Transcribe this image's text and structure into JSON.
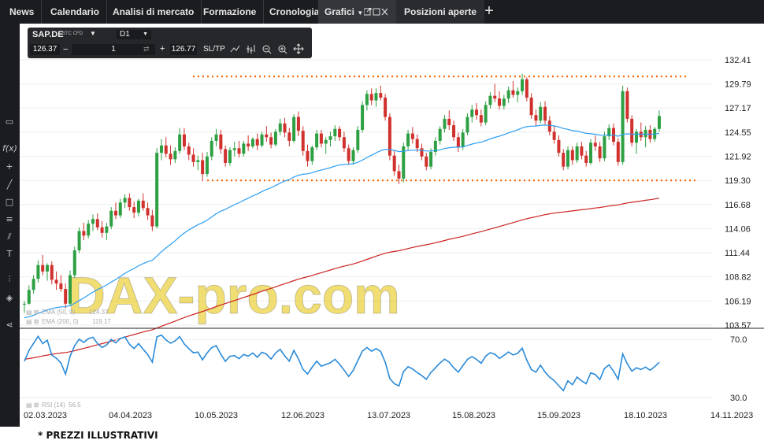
{
  "tabs": [
    {
      "label": "News"
    },
    {
      "label": "Calendario"
    },
    {
      "label": "Analisi di mercato"
    },
    {
      "label": "Formazione"
    },
    {
      "label": "Cronologia"
    },
    {
      "label": "Grafici"
    },
    {
      "label": "Posizioni aperte"
    }
  ],
  "toolbox": {
    "symbol": "SAP.DE",
    "instrument_type": "STC CFD",
    "timeframe": "D1",
    "bid": "126.37",
    "quantity": "1",
    "ask": "126.77",
    "sltp_label": "SL/TP"
  },
  "watermark": "DAX-pro.com",
  "footnote": "* PREZZI ILLUSTRATIVI",
  "colors": {
    "up": "#2ea043",
    "down": "#d0312d",
    "ema50": "#2a9df4",
    "ema200": "#cc2222",
    "rsi": "#2a8ad8",
    "levels": "#ff6600"
  },
  "chart_data": [
    {
      "type": "candlestick",
      "symbol": "SAP.DE",
      "y_ticks": [
        "132.41",
        "129.79",
        "127.17",
        "124.55",
        "121.92",
        "119.30",
        "116.68",
        "114.06",
        "111.44",
        "108.82",
        "106.19",
        "103.57"
      ],
      "ylim": [
        103.57,
        132.41
      ],
      "x_ticks": [
        "02.03.2023",
        "04.04.2023",
        "10.05.2023",
        "12.06.2023",
        "13.07.2023",
        "15.08.2023",
        "15.09.2023",
        "18.10.2023",
        "14.11.2023"
      ],
      "horizontal_levels": [
        130.6,
        119.3
      ],
      "indicators": [
        {
          "name": "EMA (50, 0)",
          "value": "124.37"
        },
        {
          "name": "EMA (200, 0)",
          "value": "119.17"
        }
      ],
      "ohlc": [
        [
          105.8,
          106.2,
          104.9,
          105.9
        ],
        [
          105.9,
          107.9,
          105.8,
          107.4
        ],
        [
          107.4,
          109.0,
          107.0,
          108.6
        ],
        [
          108.6,
          110.6,
          108.2,
          110.1
        ],
        [
          110.1,
          111.2,
          109.0,
          109.4
        ],
        [
          109.4,
          110.3,
          108.4,
          110.1
        ],
        [
          110.1,
          110.5,
          108.0,
          108.5
        ],
        [
          108.5,
          109.4,
          107.4,
          108.1
        ],
        [
          108.1,
          109.0,
          107.2,
          107.5
        ],
        [
          107.5,
          108.1,
          105.4,
          105.9
        ],
        [
          105.9,
          109.5,
          105.6,
          109.0
        ],
        [
          109.0,
          112.1,
          108.7,
          111.7
        ],
        [
          111.7,
          114.2,
          111.4,
          113.8
        ],
        [
          113.8,
          114.7,
          112.8,
          113.3
        ],
        [
          113.3,
          115.0,
          113.0,
          114.6
        ],
        [
          114.6,
          115.6,
          113.8,
          115.1
        ],
        [
          115.1,
          115.7,
          113.9,
          114.2
        ],
        [
          114.2,
          114.9,
          113.1,
          113.6
        ],
        [
          113.6,
          114.7,
          112.8,
          114.3
        ],
        [
          114.3,
          116.4,
          114.0,
          116.0
        ],
        [
          116.0,
          116.9,
          115.1,
          115.5
        ],
        [
          115.5,
          117.3,
          115.2,
          116.9
        ],
        [
          116.9,
          117.8,
          116.3,
          117.4
        ],
        [
          117.4,
          117.9,
          116.0,
          116.4
        ],
        [
          116.4,
          117.0,
          115.2,
          115.8
        ],
        [
          115.8,
          117.3,
          115.4,
          117.1
        ],
        [
          117.1,
          117.9,
          116.0,
          116.3
        ],
        [
          116.3,
          116.9,
          115.0,
          115.5
        ],
        [
          115.5,
          116.1,
          113.8,
          114.3
        ],
        [
          114.3,
          122.8,
          114.1,
          122.3
        ],
        [
          122.3,
          123.8,
          121.5,
          123.1
        ],
        [
          123.1,
          124.0,
          121.8,
          122.2
        ],
        [
          122.2,
          123.1,
          121.0,
          121.6
        ],
        [
          121.6,
          122.9,
          121.2,
          122.5
        ],
        [
          122.5,
          125.0,
          122.2,
          124.3
        ],
        [
          124.3,
          125.0,
          122.6,
          123.0
        ],
        [
          123.0,
          123.4,
          121.5,
          122.1
        ],
        [
          122.1,
          122.8,
          120.8,
          121.3
        ],
        [
          121.3,
          122.0,
          120.4,
          121.5
        ],
        [
          121.5,
          122.3,
          119.2,
          120.0
        ],
        [
          120.0,
          122.4,
          119.7,
          121.9
        ],
        [
          121.9,
          124.0,
          121.5,
          123.6
        ],
        [
          123.6,
          124.9,
          123.0,
          124.3
        ],
        [
          124.3,
          124.8,
          122.2,
          122.7
        ],
        [
          122.7,
          123.1,
          120.8,
          121.2
        ],
        [
          121.2,
          122.9,
          120.9,
          122.6
        ],
        [
          122.6,
          123.5,
          121.9,
          122.8
        ],
        [
          122.8,
          123.6,
          121.8,
          122.2
        ],
        [
          122.2,
          123.6,
          121.9,
          123.3
        ],
        [
          123.3,
          124.2,
          122.5,
          123.0
        ],
        [
          123.0,
          124.0,
          122.8,
          123.8
        ],
        [
          123.8,
          124.4,
          122.6,
          123.1
        ],
        [
          123.1,
          124.6,
          122.9,
          124.3
        ],
        [
          124.3,
          125.2,
          123.5,
          124.0
        ],
        [
          124.0,
          124.5,
          122.8,
          123.2
        ],
        [
          123.2,
          124.9,
          123.0,
          124.6
        ],
        [
          124.6,
          126.0,
          124.2,
          125.5
        ],
        [
          125.5,
          126.1,
          124.0,
          124.5
        ],
        [
          124.5,
          125.0,
          123.0,
          123.6
        ],
        [
          123.6,
          126.5,
          123.4,
          126.2
        ],
        [
          126.2,
          126.8,
          124.1,
          124.7
        ],
        [
          124.7,
          125.2,
          122.0,
          122.5
        ],
        [
          122.5,
          123.2,
          120.8,
          121.4
        ],
        [
          121.4,
          123.1,
          121.0,
          122.9
        ],
        [
          122.9,
          124.8,
          122.6,
          124.4
        ],
        [
          124.4,
          124.8,
          122.9,
          123.3
        ],
        [
          123.3,
          124.0,
          122.2,
          123.7
        ],
        [
          123.7,
          124.6,
          123.0,
          124.1
        ],
        [
          124.1,
          125.3,
          123.6,
          124.9
        ],
        [
          124.9,
          125.2,
          123.6,
          124.0
        ],
        [
          124.0,
          124.6,
          122.4,
          122.8
        ],
        [
          122.8,
          123.2,
          121.0,
          121.4
        ],
        [
          121.4,
          122.9,
          121.0,
          122.6
        ],
        [
          122.6,
          125.2,
          122.3,
          124.8
        ],
        [
          124.8,
          127.9,
          124.5,
          127.5
        ],
        [
          127.5,
          129.1,
          126.9,
          128.7
        ],
        [
          128.7,
          129.3,
          127.5,
          128.0
        ],
        [
          128.0,
          129.3,
          127.3,
          128.8
        ],
        [
          128.8,
          129.6,
          128.0,
          128.3
        ],
        [
          128.3,
          128.7,
          125.8,
          126.2
        ],
        [
          126.2,
          126.6,
          121.5,
          122.0
        ],
        [
          122.0,
          122.5,
          119.8,
          120.3
        ],
        [
          120.3,
          121.0,
          118.9,
          119.5
        ],
        [
          119.5,
          123.4,
          119.1,
          123.0
        ],
        [
          123.0,
          124.8,
          122.6,
          124.4
        ],
        [
          124.4,
          125.1,
          123.3,
          123.8
        ],
        [
          123.8,
          124.3,
          122.4,
          122.8
        ],
        [
          122.8,
          123.3,
          121.5,
          121.9
        ],
        [
          121.9,
          122.3,
          120.4,
          120.8
        ],
        [
          120.8,
          122.8,
          120.5,
          122.4
        ],
        [
          122.4,
          124.0,
          122.0,
          123.6
        ],
        [
          123.6,
          125.2,
          123.2,
          124.9
        ],
        [
          124.9,
          126.4,
          124.5,
          126.0
        ],
        [
          126.0,
          126.9,
          124.8,
          125.3
        ],
        [
          125.3,
          125.8,
          123.6,
          124.0
        ],
        [
          124.0,
          124.5,
          122.4,
          122.9
        ],
        [
          122.9,
          124.9,
          122.6,
          124.5
        ],
        [
          124.5,
          126.6,
          124.2,
          126.2
        ],
        [
          126.2,
          127.5,
          125.6,
          127.0
        ],
        [
          127.0,
          127.7,
          125.9,
          126.4
        ],
        [
          126.4,
          127.0,
          125.2,
          125.6
        ],
        [
          125.6,
          127.9,
          125.3,
          127.5
        ],
        [
          127.5,
          128.9,
          127.1,
          128.5
        ],
        [
          128.5,
          129.8,
          127.8,
          128.2
        ],
        [
          128.2,
          129.0,
          127.0,
          127.4
        ],
        [
          127.4,
          128.6,
          127.0,
          128.2
        ],
        [
          128.2,
          129.5,
          127.7,
          129.1
        ],
        [
          129.1,
          130.1,
          128.3,
          128.6
        ],
        [
          128.6,
          129.4,
          127.8,
          129.0
        ],
        [
          129.0,
          130.9,
          128.6,
          130.3
        ],
        [
          130.3,
          130.5,
          127.9,
          128.3
        ],
        [
          128.3,
          128.8,
          126.0,
          126.4
        ],
        [
          126.4,
          127.0,
          125.2,
          125.8
        ],
        [
          125.8,
          127.8,
          125.5,
          127.3
        ],
        [
          127.3,
          127.9,
          125.4,
          125.8
        ],
        [
          125.8,
          126.3,
          124.2,
          124.6
        ],
        [
          124.6,
          125.2,
          123.3,
          123.7
        ],
        [
          123.7,
          124.2,
          121.9,
          122.3
        ],
        [
          122.3,
          122.7,
          120.4,
          120.8
        ],
        [
          120.8,
          123.0,
          120.5,
          122.6
        ],
        [
          122.6,
          123.0,
          121.0,
          121.5
        ],
        [
          121.5,
          123.4,
          121.2,
          123.0
        ],
        [
          123.0,
          123.5,
          121.6,
          122.0
        ],
        [
          122.0,
          122.5,
          120.8,
          121.2
        ],
        [
          121.2,
          123.8,
          121.0,
          123.4
        ],
        [
          123.4,
          124.2,
          122.5,
          123.0
        ],
        [
          123.0,
          123.5,
          121.3,
          121.7
        ],
        [
          121.7,
          124.6,
          121.4,
          124.1
        ],
        [
          124.1,
          125.4,
          123.7,
          125.0
        ],
        [
          125.0,
          125.5,
          123.1,
          123.5
        ],
        [
          123.5,
          123.9,
          120.9,
          121.3
        ],
        [
          121.3,
          129.6,
          121.0,
          129.0
        ],
        [
          129.0,
          129.4,
          125.6,
          126.0
        ],
        [
          126.0,
          126.4,
          123.0,
          123.4
        ],
        [
          123.4,
          124.9,
          122.2,
          124.6
        ],
        [
          124.6,
          125.6,
          123.6,
          124.0
        ],
        [
          124.0,
          125.2,
          122.9,
          124.8
        ],
        [
          124.8,
          125.3,
          123.4,
          123.8
        ],
        [
          123.8,
          125.1,
          123.5,
          124.9
        ],
        [
          124.9,
          126.9,
          124.6,
          126.3
        ]
      ]
    },
    {
      "type": "line",
      "label": "RSI (14)",
      "value": "56.5",
      "y_ticks": [
        "70.0",
        "30.0"
      ],
      "ylim": [
        24,
        75
      ]
    }
  ]
}
